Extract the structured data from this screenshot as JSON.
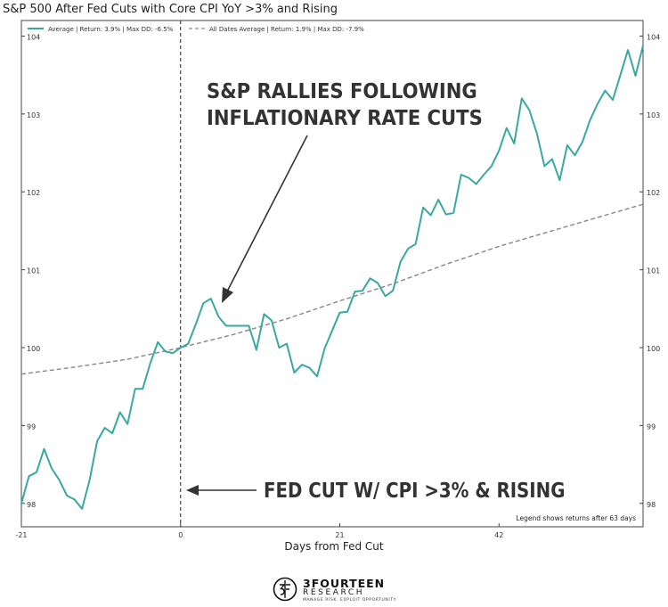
{
  "title": "S&P 500 After Fed Cuts with Core CPI YoY >3% and Rising",
  "chart_data": {
    "type": "line",
    "title": "S&P 500 After Fed Cuts with Core CPI YoY >3% and Rising",
    "xlabel": "Days from Fed Cut",
    "ylabel": "",
    "xlim": [
      -21,
      61
    ],
    "ylim": [
      97.7,
      104.2
    ],
    "xticks": [
      -21,
      0,
      21,
      42
    ],
    "yticks": [
      98,
      99,
      100,
      101,
      102,
      103,
      104
    ],
    "x_tick_labels": [
      "-21",
      "0",
      "21",
      "42"
    ],
    "y_tick_labels": [
      "98",
      "99",
      "100",
      "101",
      "102",
      "103",
      "104"
    ],
    "grid": false,
    "legend_position": "top",
    "series": [
      {
        "name": "Average | Return: 3.9% | Max DD: -6.5%",
        "color": "#3aa8a0",
        "style": "solid",
        "x": [
          -21,
          -20,
          -19,
          -18,
          -17,
          -16,
          -15,
          -14,
          -13,
          -12,
          -11,
          -10,
          -9,
          -8,
          -7,
          -6,
          -5,
          -4,
          -3,
          -2,
          -1,
          0,
          1,
          2,
          3,
          4,
          5,
          6,
          7,
          8,
          9,
          10,
          11,
          12,
          13,
          14,
          15,
          16,
          17,
          18,
          19,
          20,
          21,
          22,
          23,
          24,
          25,
          26,
          27,
          28,
          29,
          30,
          31,
          32,
          33,
          34,
          35,
          36,
          37,
          38,
          39,
          40,
          41,
          42,
          43,
          44,
          45,
          46,
          47,
          48,
          49,
          50,
          51,
          52,
          53,
          54,
          55,
          56,
          57,
          58,
          59,
          60,
          61
        ],
        "y": [
          98.0,
          98.35,
          98.4,
          98.7,
          98.45,
          98.3,
          98.1,
          98.05,
          97.93,
          98.3,
          98.8,
          98.97,
          98.9,
          99.17,
          99.02,
          99.47,
          99.47,
          99.8,
          100.07,
          99.95,
          99.93,
          100.0,
          100.05,
          100.3,
          100.57,
          100.63,
          100.4,
          100.28,
          100.28,
          100.28,
          100.28,
          99.97,
          100.43,
          100.35,
          100.0,
          100.05,
          99.68,
          99.78,
          99.74,
          99.63,
          99.99,
          100.22,
          100.45,
          100.46,
          100.72,
          100.73,
          100.89,
          100.83,
          100.66,
          100.73,
          101.1,
          101.27,
          101.33,
          101.8,
          101.7,
          101.9,
          101.71,
          101.73,
          102.22,
          102.18,
          102.1,
          102.22,
          102.33,
          102.53,
          102.82,
          102.62,
          103.2,
          103.05,
          102.75,
          102.33,
          102.42,
          102.15,
          102.6,
          102.47,
          102.64,
          102.92,
          103.13,
          103.3,
          103.18,
          103.5,
          103.82,
          103.49,
          103.88
        ]
      },
      {
        "name": "All Dates Average | Return: 1.9% | Max DD: -7.9%",
        "color": "#888888",
        "style": "dashed",
        "x": [
          -21,
          -14,
          -7,
          0,
          7,
          14,
          21,
          28,
          35,
          42,
          49,
          56,
          61
        ],
        "y": [
          99.66,
          99.75,
          99.85,
          100.0,
          100.17,
          100.37,
          100.6,
          100.82,
          101.07,
          101.3,
          101.5,
          101.7,
          101.84
        ]
      }
    ],
    "annotations": [
      {
        "text_lines": [
          "S&P RALLIES FOLLOWING",
          "INFLATIONARY RATE CUTS"
        ],
        "arrow": "points down-left to the local peak just after day 0"
      },
      {
        "text": "FED CUT W/ CPI >3% & RISING",
        "arrow": "points left to the vertical dashed line at day 0"
      }
    ],
    "note": "Legend shows returns after 63 days"
  },
  "logo": {
    "name": "3FOURTEEN",
    "sub": "RESEARCH",
    "tagline": "MANAGE RISK. EXPLOIT OPPORTUNITY."
  },
  "colors": {
    "series_main": "#3aa8a0",
    "series_avg": "#888888",
    "vline": "#222222",
    "annotation_text": "#333333"
  }
}
